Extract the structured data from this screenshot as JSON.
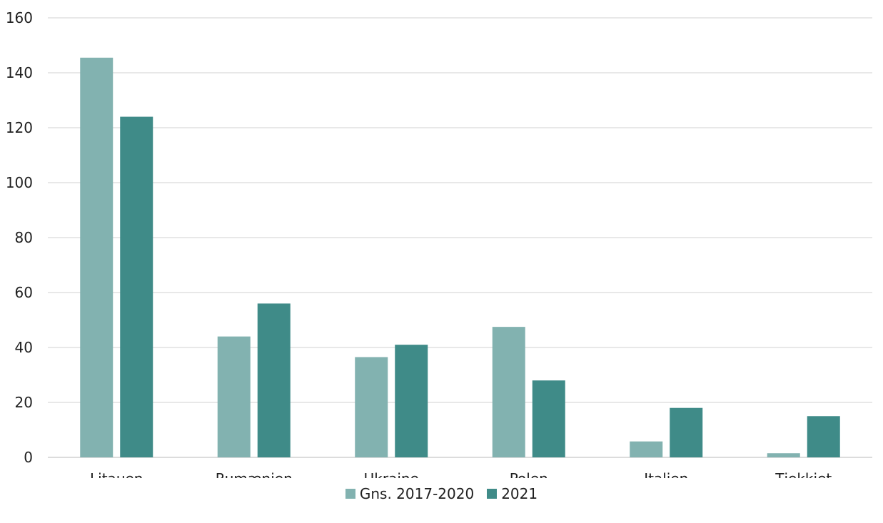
{
  "chart_data": {
    "type": "bar",
    "title": "",
    "xlabel": "",
    "ylabel": "",
    "ylim": [
      0,
      160
    ],
    "yticks": [
      0,
      20,
      40,
      60,
      80,
      100,
      120,
      140,
      160
    ],
    "grid": true,
    "legend_position": "bottom",
    "categories": [
      "Litauen",
      "Rumænien",
      "Ukraine",
      "Polen",
      "Italien",
      "Tjekkiet"
    ],
    "series": [
      {
        "name": "Gns. 2017-2020",
        "color": "#82b2b0",
        "values": [
          145.5,
          44,
          36.5,
          47.5,
          5.8,
          1.5
        ]
      },
      {
        "name": "2021",
        "color": "#3f8b88",
        "values": [
          124,
          56,
          41,
          28,
          18,
          15
        ]
      }
    ]
  }
}
